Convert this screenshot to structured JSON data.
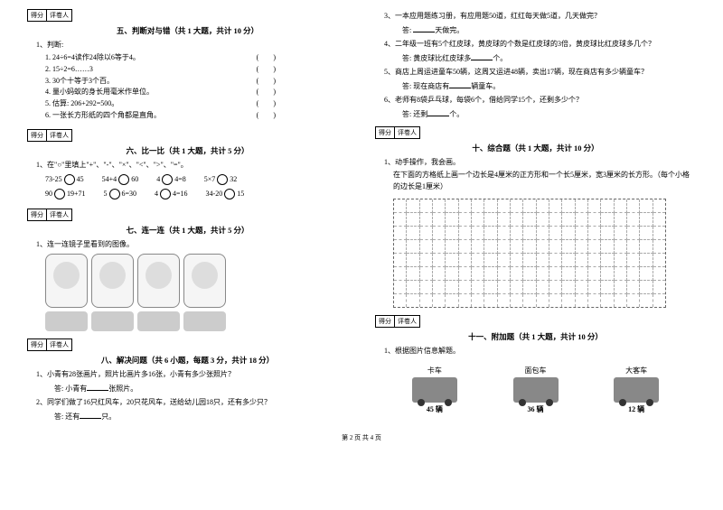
{
  "scorebox": {
    "score": "得分",
    "reviewer": "评卷人"
  },
  "section5": {
    "title": "五、判断对与错（共 1 大题，共计 10 分）",
    "lead": "1、判断:",
    "items": [
      "1. 24÷6=4读作24除以6等于4。",
      "2. 15÷2=6……3",
      "3. 30个十等于3个百。",
      "4. 量小蚂蚁的身长用毫米作单位。",
      "5. 估算: 206+292=500。",
      "6. 一张长方形纸的四个角都是直角。"
    ],
    "paren": "(　　)"
  },
  "section6": {
    "title": "六、比一比（共 1 大题，共计 5 分）",
    "lead": "1、在\"○\"里填上\"+\"、\"-\"、\"×\"、\"<\"、\">\"、\"=\"。",
    "rows": [
      [
        "73-25",
        "45",
        "54+4",
        "60",
        "4",
        "4=8",
        "5×7",
        "32"
      ],
      [
        "90",
        "19+71",
        "5",
        "6=30",
        "4",
        "4=16",
        "34-20",
        "15"
      ]
    ]
  },
  "section7": {
    "title": "七、连一连（共 1 大题，共计 5 分）",
    "lead": "1、连一连镜子里看到的图像。"
  },
  "section8": {
    "title": "八、解决问题（共 6 小题，每题 3 分，共计 18 分）",
    "q1": "1、小青有28张画片，照片比画片多16张，小青有多少张照片？",
    "a1pre": "答: 小青有",
    "a1suf": "张照片。",
    "q2": "2、同学们做了16只红风车，20只花风车，送给幼儿园18只，还有多少只？",
    "a2pre": "答: 还有",
    "a2suf": "只。",
    "q3": "3、一本应用题练习册，有应用题50道，红红每天做5道，几天做完？",
    "a3pre": "答: ",
    "a3suf": "天做完。",
    "q4": "4、二年级一班有5个红皮球，黄皮球的个数是红皮球的3倍，黄皮球比红皮球多几个？",
    "a4pre": "答: 黄皮球比红皮球多",
    "a4suf": "个。",
    "q5": "5、商店上周运进童车50辆，这周又运进48辆，卖出17辆，现在商店有多少辆童车？",
    "a5pre": "答: 现在商店有",
    "a5suf": "辆童车。",
    "q6": "6、老师有8袋乒乓球，每袋6个，借给同学15个，还剩多少个？",
    "a6pre": "答: 还剩",
    "a6suf": "个。"
  },
  "section10": {
    "title": "十、综合题（共 1 大题，共计 10 分）",
    "lead": "1、动手操作，我会画。",
    "desc": "在下面的方格纸上画一个边长是4厘米的正方形和一个长5厘米，宽3厘米的长方形。（每个小格的边长是1厘米）",
    "gridCols": 21,
    "gridRows": 8
  },
  "section11": {
    "title": "十一、附加题（共 1 大题，共计 10 分）",
    "lead": "1、根据图片信息解题。",
    "vehicles": [
      {
        "label": "卡车",
        "count": "45 辆",
        "color": "#555555"
      },
      {
        "label": "面包车",
        "count": "36 辆",
        "color": "#888888"
      },
      {
        "label": "大客车",
        "count": "12 辆",
        "color": "#777777"
      }
    ]
  },
  "footer": "第 2 页 共 4 页"
}
